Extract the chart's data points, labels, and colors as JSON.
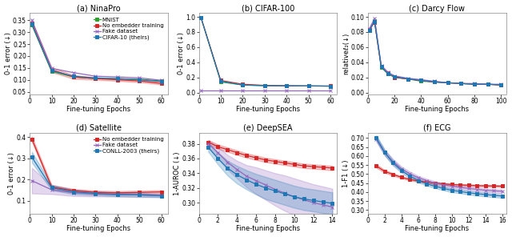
{
  "subplots": [
    {
      "title": "(a) NinaPro",
      "xlabel": "Fine-tuning Epochs",
      "ylabel": "0-1 error (↓)",
      "xlim": [
        0,
        63
      ],
      "ylim": [
        0.04,
        0.38
      ],
      "yticks": [
        0.05,
        0.1,
        0.15,
        0.2,
        0.25,
        0.3,
        0.35
      ],
      "xticks": [
        0,
        10,
        20,
        30,
        40,
        50,
        60
      ],
      "legend_idx": true,
      "series": [
        {
          "label": "MNIST",
          "color": "#2ca02c",
          "marker": "s",
          "x": [
            1,
            10,
            20,
            30,
            40,
            50,
            60
          ],
          "y": [
            0.33,
            0.135,
            0.112,
            0.105,
            0.105,
            0.102,
            0.095
          ],
          "yerr": null
        },
        {
          "label": "No embedder training",
          "color": "#d62728",
          "marker": "s",
          "x": [
            1,
            10,
            20,
            30,
            40,
            50,
            60
          ],
          "y": [
            0.338,
            0.142,
            0.112,
            0.105,
            0.1,
            0.095,
            0.085
          ],
          "yerr": [
            0.008,
            0.01,
            0.008,
            0.005,
            0.005,
            0.005,
            0.005
          ]
        },
        {
          "label": "Fake dataset",
          "color": "#9467bd",
          "marker": "x",
          "x": [
            1,
            10,
            20,
            30,
            40,
            50,
            60
          ],
          "y": [
            0.35,
            0.148,
            0.13,
            0.115,
            0.112,
            0.108,
            0.098
          ],
          "yerr": null
        },
        {
          "label": "CIFAR-10 (theirs)",
          "color": "#1f77b4",
          "marker": "s",
          "x": [
            1,
            10,
            20,
            30,
            40,
            50,
            60
          ],
          "y": [
            0.333,
            0.138,
            0.115,
            0.108,
            0.105,
            0.1,
            0.093
          ],
          "yerr": null
        }
      ]
    },
    {
      "title": "(b) CIFAR-100",
      "xlabel": "Fine-tuning Epochs",
      "ylabel": "0-1 error (↓)",
      "xlim": [
        0,
        63
      ],
      "ylim": [
        -0.02,
        1.05
      ],
      "yticks": [
        0,
        0.2,
        0.4,
        0.6,
        0.8,
        1.0
      ],
      "xticks": [
        0,
        10,
        20,
        30,
        40,
        50,
        60
      ],
      "legend_idx": false,
      "series": [
        {
          "label": "MNIST",
          "color": "#2ca02c",
          "marker": "s",
          "x": [
            1,
            10,
            20,
            30,
            40,
            50,
            60
          ],
          "y": [
            0.99,
            0.14,
            0.1,
            0.09,
            0.088,
            0.087,
            0.085
          ],
          "yerr": null
        },
        {
          "label": "No embedder training",
          "color": "#d62728",
          "marker": "s",
          "x": [
            1,
            10,
            20,
            30,
            40,
            50,
            60
          ],
          "y": [
            0.99,
            0.16,
            0.11,
            0.095,
            0.09,
            0.088,
            0.086
          ],
          "yerr": null
        },
        {
          "label": "Fake dataset",
          "color": "#9467bd",
          "marker": "x",
          "x": [
            1,
            10,
            20,
            30,
            40,
            50,
            60
          ],
          "y": [
            0.03,
            0.03,
            0.03,
            0.03,
            0.03,
            0.03,
            0.03
          ],
          "yerr": null
        },
        {
          "label": "CIFAR-10 (theirs)",
          "color": "#1f77b4",
          "marker": "s",
          "x": [
            1,
            10,
            20,
            30,
            40,
            50,
            60
          ],
          "y": [
            0.99,
            0.15,
            0.1,
            0.092,
            0.089,
            0.087,
            0.085
          ],
          "yerr": null
        }
      ]
    },
    {
      "title": "(c) Darcy Flow",
      "xlabel": "Fine-tuning Epochs",
      "ylabel": "relativeℓ₂(↓)",
      "xlim": [
        0,
        104
      ],
      "ylim": [
        -0.002,
        0.105
      ],
      "yticks": [
        0,
        0.02,
        0.04,
        0.06,
        0.08,
        0.1
      ],
      "xticks": [
        0,
        20,
        40,
        60,
        80,
        100
      ],
      "legend_idx": false,
      "series": [
        {
          "label": "MNIST",
          "color": "#2ca02c",
          "marker": "s",
          "x": [
            1,
            5,
            10,
            15,
            20,
            30,
            40,
            50,
            60,
            70,
            80,
            90,
            100
          ],
          "y": [
            0.082,
            0.095,
            0.033,
            0.025,
            0.02,
            0.018,
            0.015,
            0.014,
            0.013,
            0.012,
            0.011,
            0.011,
            0.01
          ],
          "yerr": null
        },
        {
          "label": "No embedder training",
          "color": "#d62728",
          "marker": "s",
          "x": [
            1,
            5,
            10,
            15,
            20,
            30,
            40,
            50,
            60,
            70,
            80,
            90,
            100
          ],
          "y": [
            0.083,
            0.093,
            0.034,
            0.026,
            0.02,
            0.018,
            0.016,
            0.014,
            0.013,
            0.012,
            0.011,
            0.011,
            0.01
          ],
          "yerr": null
        },
        {
          "label": "Fake dataset",
          "color": "#9467bd",
          "marker": "x",
          "x": [
            1,
            5,
            10,
            15,
            20,
            30,
            40,
            50,
            60,
            70,
            80,
            90,
            100
          ],
          "y": [
            0.084,
            0.098,
            0.036,
            0.027,
            0.022,
            0.019,
            0.017,
            0.015,
            0.013,
            0.012,
            0.012,
            0.011,
            0.011
          ],
          "yerr": null
        },
        {
          "label": "CIFAR-10 (theirs)",
          "color": "#1f77b4",
          "marker": "s",
          "x": [
            1,
            5,
            10,
            15,
            20,
            30,
            40,
            50,
            60,
            70,
            80,
            90,
            100
          ],
          "y": [
            0.082,
            0.094,
            0.034,
            0.025,
            0.021,
            0.018,
            0.016,
            0.014,
            0.013,
            0.012,
            0.011,
            0.011,
            0.01
          ],
          "yerr": null
        }
      ]
    },
    {
      "title": "(d) Satellite",
      "xlabel": "Fine-tuning Epochs",
      "ylabel": "0-1 error (↓)",
      "xlim": [
        0,
        63
      ],
      "ylim": [
        0.04,
        0.42
      ],
      "yticks": [
        0.1,
        0.2,
        0.3,
        0.4
      ],
      "xticks": [
        0,
        10,
        20,
        30,
        40,
        50,
        60
      ],
      "legend_idx": true,
      "series": [
        {
          "label": "No embedder training",
          "color": "#d62728",
          "marker": "s",
          "x": [
            1,
            10,
            20,
            30,
            40,
            50,
            60
          ],
          "y": [
            0.39,
            0.165,
            0.148,
            0.14,
            0.138,
            0.14,
            0.142
          ],
          "yerr": [
            0.012,
            0.01,
            0.008,
            0.008,
            0.008,
            0.008,
            0.008
          ]
        },
        {
          "label": "Fake dataset",
          "color": "#9467bd",
          "marker": "x",
          "x": [
            1,
            10,
            20,
            30,
            40,
            50,
            60
          ],
          "y": [
            0.195,
            0.152,
            0.138,
            0.133,
            0.13,
            0.128,
            0.125
          ],
          "yerr": [
            0.06,
            0.02,
            0.015,
            0.012,
            0.01,
            0.01,
            0.008
          ]
        },
        {
          "label": "CONLL-2003 (theirs)",
          "color": "#1f77b4",
          "marker": "s",
          "x": [
            1,
            10,
            20,
            30,
            40,
            50,
            60
          ],
          "y": [
            0.305,
            0.162,
            0.142,
            0.135,
            0.13,
            0.128,
            0.124
          ],
          "yerr": [
            0.025,
            0.012,
            0.01,
            0.008,
            0.008,
            0.008,
            0.006
          ]
        }
      ]
    },
    {
      "title": "(e) DeepSEA",
      "xlabel": "Fine-tuning Epochs",
      "ylabel": "1-AUROC (↓)",
      "xlim": [
        0,
        14.5
      ],
      "ylim": [
        0.285,
        0.395
      ],
      "yticks": [
        0.3,
        0.32,
        0.34,
        0.36,
        0.38
      ],
      "xticks": [
        0,
        2,
        4,
        6,
        8,
        10,
        12,
        14
      ],
      "legend_idx": false,
      "series": [
        {
          "label": "No embedder training",
          "color": "#d62728",
          "marker": "s",
          "x": [
            1,
            2,
            3,
            4,
            5,
            6,
            7,
            8,
            9,
            10,
            11,
            12,
            13,
            14
          ],
          "y": [
            0.382,
            0.376,
            0.372,
            0.368,
            0.364,
            0.361,
            0.358,
            0.356,
            0.354,
            0.352,
            0.35,
            0.349,
            0.348,
            0.347
          ],
          "yerr": [
            0.003,
            0.003,
            0.003,
            0.003,
            0.003,
            0.003,
            0.003,
            0.003,
            0.003,
            0.003,
            0.003,
            0.003,
            0.003,
            0.003
          ]
        },
        {
          "label": "Fake dataset",
          "color": "#9467bd",
          "marker": "x",
          "x": [
            1,
            2,
            3,
            4,
            5,
            6,
            7,
            8,
            9,
            10,
            11,
            12,
            13,
            14
          ],
          "y": [
            0.38,
            0.368,
            0.355,
            0.345,
            0.336,
            0.33,
            0.324,
            0.318,
            0.313,
            0.308,
            0.304,
            0.3,
            0.297,
            0.294
          ],
          "yerr": [
            0.005,
            0.008,
            0.01,
            0.012,
            0.015,
            0.018,
            0.02,
            0.022,
            0.024,
            0.025,
            0.025,
            0.025,
            0.025,
            0.025
          ]
        },
        {
          "label": "CONLL-2003 (theirs)",
          "color": "#1f77b4",
          "marker": "s",
          "x": [
            1,
            2,
            3,
            4,
            5,
            6,
            7,
            8,
            9,
            10,
            11,
            12,
            13,
            14
          ],
          "y": [
            0.375,
            0.36,
            0.347,
            0.338,
            0.331,
            0.325,
            0.32,
            0.316,
            0.312,
            0.308,
            0.305,
            0.303,
            0.301,
            0.299
          ],
          "yerr": [
            0.006,
            0.008,
            0.01,
            0.012,
            0.013,
            0.014,
            0.015,
            0.015,
            0.015,
            0.015,
            0.015,
            0.015,
            0.015,
            0.015
          ]
        }
      ]
    },
    {
      "title": "(f) ECG",
      "xlabel": "Fine-tuning Epochs",
      "ylabel": "1-F1 (↓)",
      "xlim": [
        0,
        16.5
      ],
      "ylim": [
        0.28,
        0.73
      ],
      "yticks": [
        0.3,
        0.35,
        0.4,
        0.45,
        0.5,
        0.55,
        0.6,
        0.65,
        0.7
      ],
      "xticks": [
        0,
        2,
        4,
        6,
        8,
        10,
        12,
        14,
        16
      ],
      "legend_idx": false,
      "series": [
        {
          "label": "No embedder training",
          "color": "#d62728",
          "marker": "s",
          "x": [
            1,
            2,
            3,
            4,
            5,
            6,
            7,
            8,
            9,
            10,
            11,
            12,
            13,
            14,
            15,
            16
          ],
          "y": [
            0.545,
            0.515,
            0.498,
            0.482,
            0.47,
            0.462,
            0.456,
            0.45,
            0.446,
            0.442,
            0.44,
            0.438,
            0.436,
            0.435,
            0.434,
            0.433
          ],
          "yerr": [
            0.01,
            0.008,
            0.007,
            0.006,
            0.006,
            0.005,
            0.005,
            0.005,
            0.005,
            0.005,
            0.005,
            0.005,
            0.005,
            0.005,
            0.005,
            0.005
          ]
        },
        {
          "label": "Fake dataset",
          "color": "#9467bd",
          "marker": "x",
          "x": [
            1,
            2,
            3,
            4,
            5,
            6,
            7,
            8,
            9,
            10,
            11,
            12,
            13,
            14,
            15,
            16
          ],
          "y": [
            0.695,
            0.62,
            0.568,
            0.53,
            0.502,
            0.48,
            0.464,
            0.45,
            0.44,
            0.432,
            0.426,
            0.42,
            0.415,
            0.41,
            0.407,
            0.404
          ],
          "yerr": [
            0.015,
            0.015,
            0.015,
            0.012,
            0.012,
            0.01,
            0.01,
            0.01,
            0.01,
            0.01,
            0.01,
            0.01,
            0.01,
            0.01,
            0.01,
            0.01
          ]
        },
        {
          "label": "CONLL-2003 (theirs)",
          "color": "#1f77b4",
          "marker": "s",
          "x": [
            1,
            2,
            3,
            4,
            5,
            6,
            7,
            8,
            9,
            10,
            11,
            12,
            13,
            14,
            15,
            16
          ],
          "y": [
            0.7,
            0.62,
            0.562,
            0.52,
            0.488,
            0.464,
            0.446,
            0.432,
            0.42,
            0.41,
            0.403,
            0.396,
            0.391,
            0.386,
            0.382,
            0.378
          ],
          "yerr": [
            0.015,
            0.015,
            0.015,
            0.012,
            0.012,
            0.01,
            0.01,
            0.01,
            0.01,
            0.01,
            0.01,
            0.01,
            0.01,
            0.01,
            0.01,
            0.01
          ]
        }
      ]
    }
  ],
  "bg_color": "#f8f8f8",
  "font_size": 6.0,
  "title_font_size": 7.0,
  "marker_size": 2.5,
  "linewidth": 0.9
}
